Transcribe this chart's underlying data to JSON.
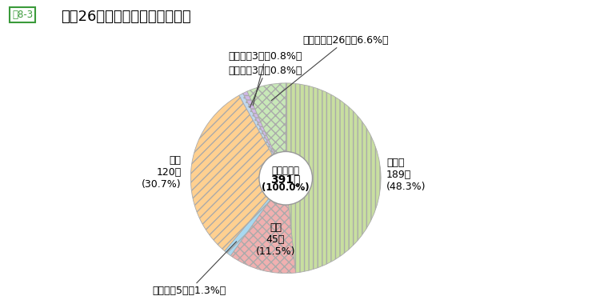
{
  "title": "平成26年度末派遣先地域別状況",
  "figure_label": "図8-3",
  "center_text_line1": "派遣者総数",
  "center_text_line2": "391人",
  "center_text_line3": "(100.0%)",
  "segments": [
    {
      "label": "アジア",
      "count": 189,
      "pct": "48.3%",
      "value": 189,
      "color": "#c8dfa0",
      "hatch": "|||"
    },
    {
      "label": "北米",
      "count": 45,
      "pct": "11.5%",
      "value": 45,
      "color": "#f0b0b0",
      "hatch": "xxx"
    },
    {
      "label": "中南米",
      "count": 5,
      "pct": "1.3%",
      "value": 5,
      "color": "#a8d8f0",
      "hatch": "///"
    },
    {
      "label": "欧州",
      "count": 120,
      "pct": "30.7%",
      "value": 120,
      "color": "#ffd090",
      "hatch": "///"
    },
    {
      "label": "大洋州",
      "count": 3,
      "pct": "0.8%",
      "value": 3,
      "color": "#c0d8f0",
      "hatch": "..."
    },
    {
      "label": "中東",
      "count": 3,
      "pct": "0.8%",
      "value": 3,
      "color": "#d0b8e8",
      "hatch": "---"
    },
    {
      "label": "アフリカ",
      "count": 26,
      "pct": "6.6%",
      "value": 26,
      "color": "#c8e8b8",
      "hatch": "xxx"
    }
  ],
  "background_color": "#ffffff",
  "title_fontsize": 13,
  "label_fontsize": 9
}
